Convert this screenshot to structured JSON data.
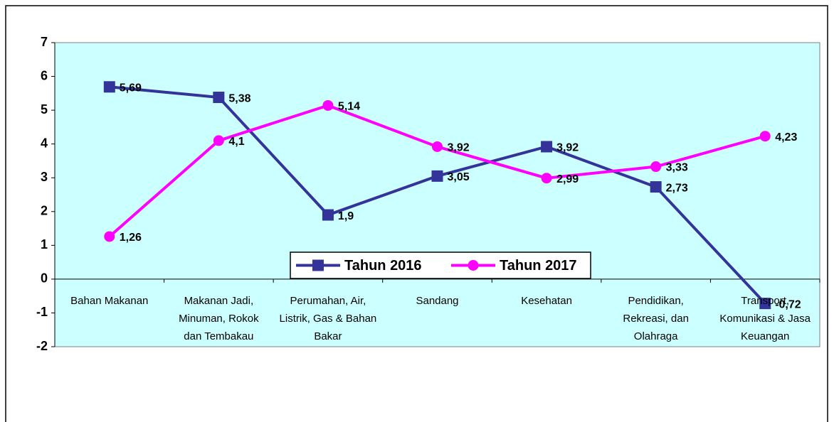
{
  "chart_data": {
    "type": "line",
    "categories": [
      "Bahan Makanan",
      "Makanan Jadi, Minuman, Rokok dan Tembakau",
      "Perumahan, Air, Listrik, Gas & Bahan Bakar",
      "Sandang",
      "Kesehatan",
      "Pendidikan, Rekreasi, dan Olahraga",
      "Transport, Komunikasi & Jasa Keuangan"
    ],
    "series": [
      {
        "name": "Tahun 2016",
        "color": "#333399",
        "marker": "square",
        "values": [
          5.69,
          5.38,
          1.9,
          3.05,
          3.92,
          2.73,
          -0.72
        ],
        "value_labels": [
          "5,69",
          "5,38",
          "1,9",
          "3,05",
          "3,92",
          "2,73",
          "-0,72"
        ]
      },
      {
        "name": "Tahun 2017",
        "color": "#ff00ff",
        "marker": "circle",
        "values": [
          1.26,
          4.1,
          5.14,
          3.92,
          2.99,
          3.33,
          4.23
        ],
        "value_labels": [
          "1,26",
          "4,1",
          "5,14",
          "3,92",
          "2,99",
          "3,33",
          "4,23"
        ]
      }
    ],
    "ylim": [
      -2,
      7
    ],
    "yticks": [
      -2,
      -1,
      0,
      1,
      2,
      3,
      4,
      5,
      6,
      7
    ],
    "plot_background": "#ccffff",
    "legend": "bottom"
  }
}
